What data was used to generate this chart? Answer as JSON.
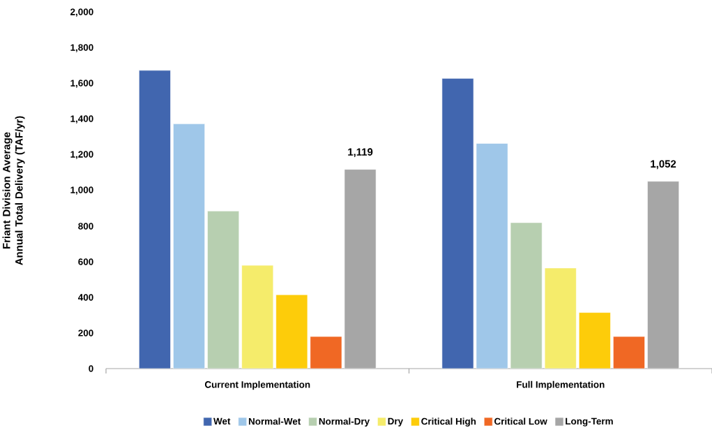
{
  "chart_data": {
    "type": "bar",
    "ylabel": "Friant Division Average Annual Total Delivery (TAF/yr)",
    "categories": [
      "Current Implementation",
      "Full Implementation"
    ],
    "series": [
      {
        "name": "Wet",
        "color": "#4166af",
        "values": [
          1675,
          1630
        ]
      },
      {
        "name": "Normal-Wet",
        "color": "#9fc7e9",
        "values": [
          1375,
          1265
        ]
      },
      {
        "name": "Normal-Dry",
        "color": "#b7cfb0",
        "values": [
          885,
          820
        ]
      },
      {
        "name": "Dry",
        "color": "#f5ec6b",
        "values": [
          580,
          565
        ]
      },
      {
        "name": "Critical High",
        "color": "#fdcc0a",
        "values": [
          415,
          315
        ]
      },
      {
        "name": "Critical Low",
        "color": "#f06824",
        "values": [
          180,
          180
        ]
      },
      {
        "name": "Long-Term",
        "color": "#a6a6a6",
        "values": [
          1119,
          1052
        ],
        "value_labels": [
          "1,119",
          "1,052"
        ]
      }
    ],
    "ylim": [
      0,
      2000
    ],
    "yticks": [
      {
        "value": 0,
        "label": "0"
      },
      {
        "value": 200,
        "label": "200"
      },
      {
        "value": 400,
        "label": "400"
      },
      {
        "value": 600,
        "label": "600"
      },
      {
        "value": 800,
        "label": "800"
      },
      {
        "value": 1000,
        "label": "1,000"
      },
      {
        "value": 1200,
        "label": "1,200"
      },
      {
        "value": 1400,
        "label": "1,400"
      },
      {
        "value": 1600,
        "label": "1,600"
      },
      {
        "value": 1800,
        "label": "1,800"
      },
      {
        "value": 2000,
        "label": "2,000"
      }
    ],
    "grid": false,
    "legend": "bottom"
  }
}
